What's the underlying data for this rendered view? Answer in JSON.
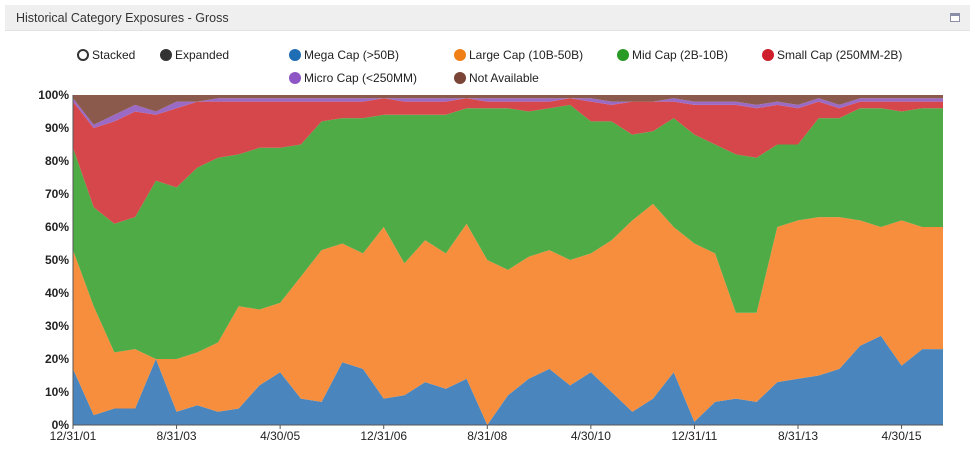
{
  "panel": {
    "title": "Historical Category Exposures - Gross"
  },
  "view_options": [
    {
      "label": "Stacked",
      "selected": false
    },
    {
      "label": "Expanded",
      "selected": true
    }
  ],
  "chart_data": {
    "type": "area",
    "stacked": true,
    "percent_expanded": true,
    "x": [
      "12/31/01",
      "4/30/02",
      "8/31/02",
      "12/31/02",
      "4/30/03",
      "8/31/03",
      "12/31/03",
      "4/30/04",
      "8/31/04",
      "12/31/04",
      "4/30/05",
      "8/31/05",
      "12/31/05",
      "4/30/06",
      "8/31/06",
      "12/31/06",
      "4/30/07",
      "8/31/07",
      "12/31/07",
      "4/30/08",
      "8/31/08",
      "12/31/08",
      "4/30/09",
      "8/31/09",
      "12/31/09",
      "4/30/10",
      "8/31/10",
      "12/31/10",
      "4/30/11",
      "8/31/11",
      "12/31/11",
      "4/30/12",
      "8/31/12",
      "12/31/12",
      "4/30/13",
      "8/31/13",
      "12/31/13",
      "4/30/14",
      "8/31/14",
      "12/31/14",
      "4/30/15",
      "8/31/15",
      "12/31/15"
    ],
    "x_tick_labels": [
      "12/31/01",
      "8/31/03",
      "4/30/05",
      "12/31/06",
      "8/31/08",
      "4/30/10",
      "12/31/11",
      "8/31/13",
      "4/30/15"
    ],
    "series": [
      {
        "name": "Mega Cap (>50B)",
        "color": "#4a86bd",
        "values": [
          17,
          3,
          5,
          5,
          20,
          4,
          6,
          4,
          5,
          12,
          16,
          8,
          7,
          19,
          17,
          8,
          9,
          13,
          11,
          14,
          0,
          9,
          14,
          17,
          12,
          16,
          10,
          4,
          8,
          16,
          1,
          7,
          8,
          7,
          13,
          14,
          15,
          17,
          24,
          27,
          18,
          23,
          23
        ]
      },
      {
        "name": "Large Cap (10B-50B)",
        "color": "#f68e3d",
        "values": [
          36,
          33,
          17,
          18,
          0,
          16,
          16,
          21,
          31,
          23,
          21,
          37,
          46,
          36,
          35,
          52,
          40,
          43,
          41,
          47,
          50,
          38,
          37,
          36,
          38,
          36,
          46,
          58,
          59,
          44,
          54,
          45,
          26,
          27,
          47,
          48,
          48,
          46,
          38,
          33,
          44,
          37,
          37
        ]
      },
      {
        "name": "Mid Cap (2B-10B)",
        "color": "#4eab45",
        "values": [
          31,
          30,
          39,
          40,
          54,
          52,
          56,
          56,
          46,
          49,
          47,
          40,
          39,
          38,
          41,
          34,
          45,
          38,
          42,
          35,
          46,
          49,
          44,
          43,
          47,
          40,
          36,
          26,
          22,
          33,
          33,
          33,
          48,
          47,
          25,
          23,
          30,
          30,
          34,
          36,
          33,
          36,
          36
        ]
      },
      {
        "name": "Small Cap (250MM-2B)",
        "color": "#d6474b",
        "values": [
          14,
          24,
          31,
          32,
          20,
          24,
          20,
          17,
          16,
          14,
          14,
          13,
          6,
          5,
          5,
          5,
          4,
          4,
          4,
          3,
          2,
          2,
          3,
          2,
          2,
          6,
          5,
          10,
          9,
          5,
          9,
          12,
          15,
          15,
          12,
          11,
          5,
          3,
          2,
          2,
          3,
          2,
          2
        ]
      },
      {
        "name": "Micro Cap (<250MM)",
        "color": "#9b6ac4",
        "values": [
          1,
          1,
          2,
          2,
          1,
          2,
          0,
          1,
          1,
          1,
          1,
          1,
          1,
          1,
          1,
          0,
          1,
          1,
          1,
          0,
          1,
          1,
          1,
          1,
          0,
          1,
          1,
          0,
          0,
          1,
          1,
          1,
          1,
          1,
          1,
          1,
          1,
          1,
          1,
          1,
          1,
          1,
          1
        ]
      },
      {
        "name": "Not Available",
        "color": "#8b5a4d",
        "values": [
          1,
          9,
          6,
          3,
          5,
          2,
          2,
          1,
          1,
          1,
          1,
          1,
          1,
          1,
          1,
          1,
          1,
          1,
          1,
          1,
          1,
          1,
          1,
          1,
          1,
          1,
          2,
          2,
          2,
          1,
          2,
          2,
          2,
          3,
          2,
          3,
          1,
          3,
          1,
          1,
          1,
          1,
          1
        ]
      }
    ],
    "y_tick_labels": [
      "0%",
      "10%",
      "20%",
      "30%",
      "40%",
      "50%",
      "60%",
      "70%",
      "80%",
      "90%",
      "100%"
    ],
    "ylim": [
      0,
      100
    ],
    "legend_position": "top",
    "grid": false
  }
}
